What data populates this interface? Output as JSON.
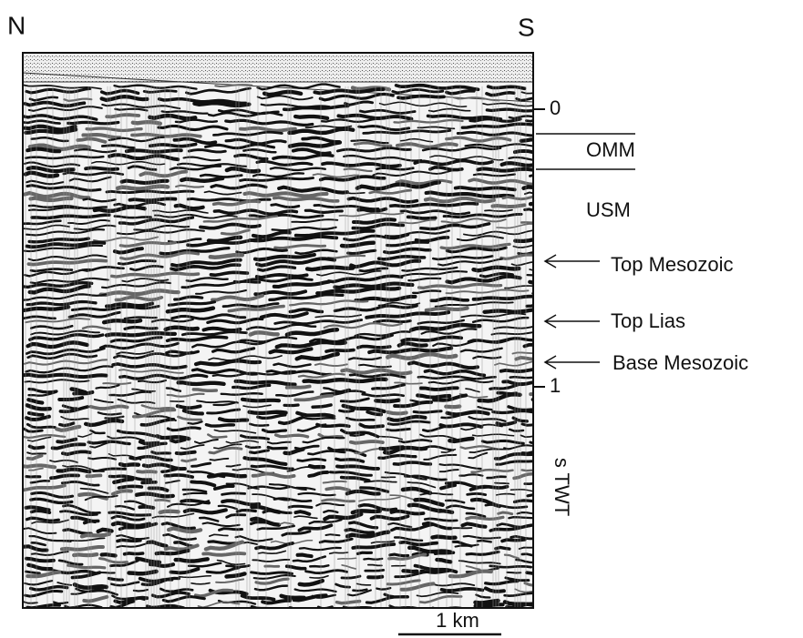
{
  "orientation": {
    "left": "N",
    "right": "S"
  },
  "time_axis": {
    "ticks": [
      "0",
      "1"
    ],
    "label": "s TWT"
  },
  "units": [
    "OMM",
    "USM"
  ],
  "horizons": [
    "Top Mesozoic",
    "Top Lias",
    "Base Mesozoic"
  ],
  "scale_bar": "1 km"
}
